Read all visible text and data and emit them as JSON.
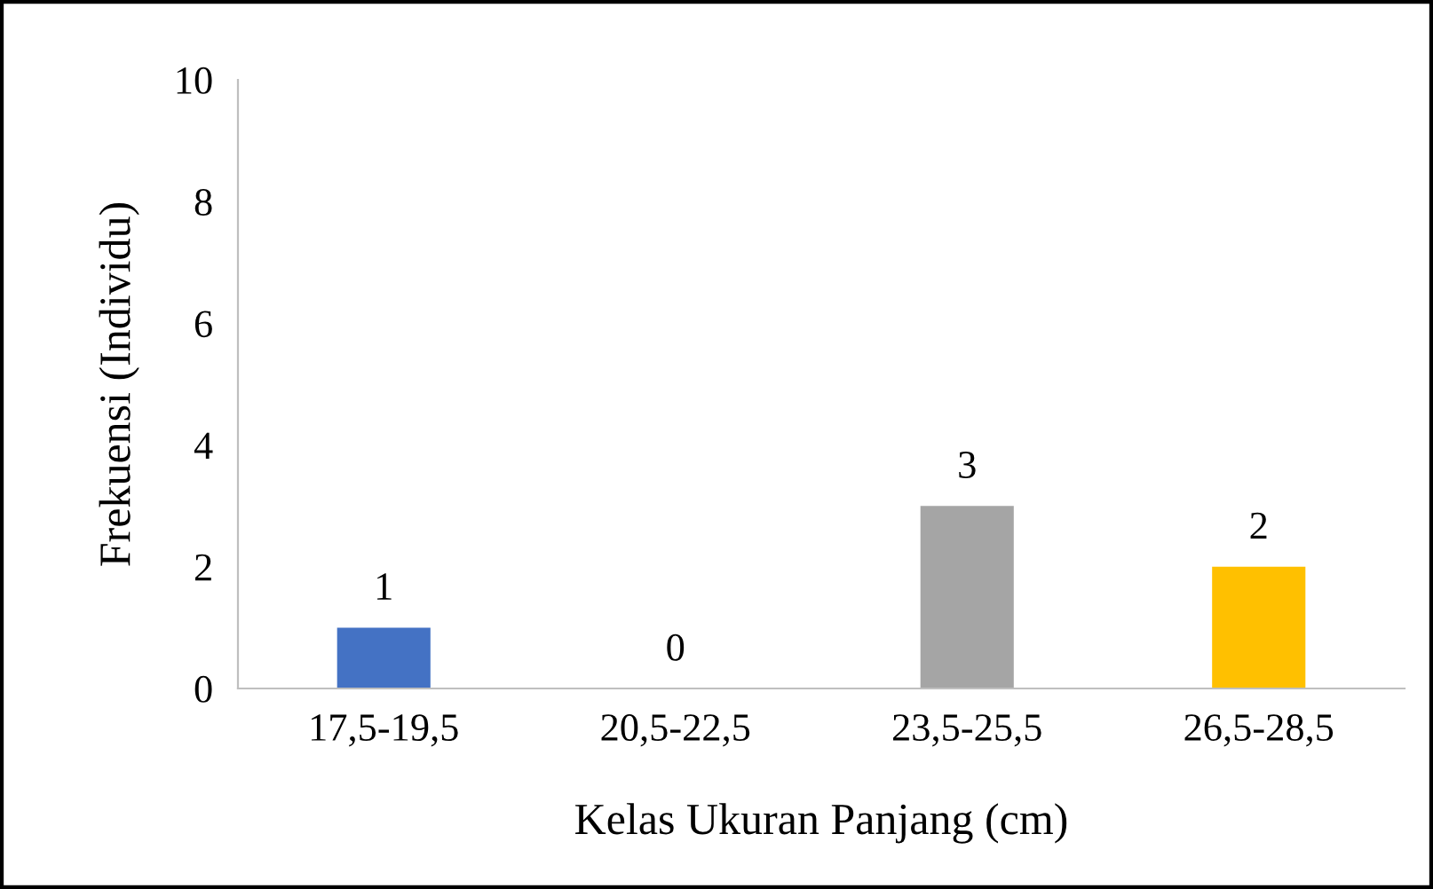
{
  "chart_data": {
    "type": "bar",
    "xlabel": "Kelas Ukuran Panjang (cm)",
    "ylabel": "Frekuensi (Individu)",
    "categories": [
      "17,5-19,5",
      "20,5-22,5",
      "23,5-25,5",
      "26,5-28,5"
    ],
    "values": [
      1,
      0,
      3,
      2
    ],
    "colors": [
      "#4472c4",
      "#ed7d31",
      "#a5a5a5",
      "#ffc000"
    ],
    "ylim": [
      0,
      10
    ],
    "yticks": [
      0,
      2,
      4,
      6,
      8,
      10
    ],
    "data_labels": true,
    "grid": false,
    "legend": false
  }
}
